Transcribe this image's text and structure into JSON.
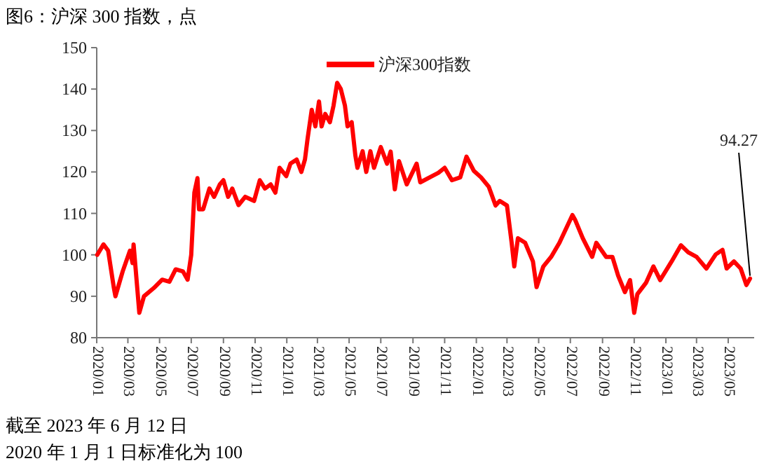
{
  "chart_data": {
    "type": "line",
    "title": "图6：沪深 300 指数，点",
    "x": [
      "2020-01-02",
      "2020-01-14",
      "2020-01-23",
      "2020-02-03",
      "2020-02-06",
      "2020-02-20",
      "2020-03-05",
      "2020-03-10",
      "2020-03-12",
      "2020-03-19",
      "2020-03-23",
      "2020-04-01",
      "2020-04-20",
      "2020-05-06",
      "2020-05-20",
      "2020-06-01",
      "2020-06-15",
      "2020-06-24",
      "2020-07-01",
      "2020-07-07",
      "2020-07-13",
      "2020-07-16",
      "2020-07-24",
      "2020-08-05",
      "2020-08-14",
      "2020-08-25",
      "2020-09-01",
      "2020-09-10",
      "2020-09-18",
      "2020-09-30",
      "2020-10-13",
      "2020-10-30",
      "2020-11-10",
      "2020-11-20",
      "2020-12-01",
      "2020-12-10",
      "2020-12-18",
      "2020-12-31",
      "2021-01-08",
      "2021-01-20",
      "2021-01-29",
      "2021-02-05",
      "2021-02-10",
      "2021-02-18",
      "2021-02-25",
      "2021-03-04",
      "2021-03-09",
      "2021-03-16",
      "2021-03-25",
      "2021-04-01",
      "2021-04-08",
      "2021-04-15",
      "2021-04-23",
      "2021-04-28",
      "2021-05-06",
      "2021-05-13",
      "2021-05-17",
      "2021-05-27",
      "2021-06-03",
      "2021-06-11",
      "2021-06-18",
      "2021-07-01",
      "2021-07-13",
      "2021-07-20",
      "2021-07-28",
      "2021-08-05",
      "2021-08-20",
      "2021-09-08",
      "2021-09-15",
      "2021-10-20",
      "2021-11-01",
      "2021-11-15",
      "2021-12-01",
      "2021-12-13",
      "2021-12-27",
      "2022-01-10",
      "2022-01-25",
      "2022-02-07",
      "2022-02-15",
      "2022-03-01",
      "2022-03-10",
      "2022-03-15",
      "2022-03-22",
      "2022-04-05",
      "2022-04-20",
      "2022-04-27",
      "2022-05-10",
      "2022-05-25",
      "2022-06-10",
      "2022-07-05",
      "2022-07-10",
      "2022-07-25",
      "2022-08-12",
      "2022-08-20",
      "2022-09-08",
      "2022-09-20",
      "2022-10-01",
      "2022-10-14",
      "2022-10-24",
      "2022-11-01",
      "2022-11-07",
      "2022-11-24",
      "2022-12-08",
      "2022-12-21",
      "2023-01-12",
      "2023-01-30",
      "2023-02-13",
      "2023-03-01",
      "2023-03-20",
      "2023-04-07",
      "2023-04-20",
      "2023-04-28",
      "2023-05-12",
      "2023-05-25",
      "2023-06-05",
      "2023-06-12"
    ],
    "series": [
      {
        "name": "沪深300指数",
        "color": "#ff0000",
        "values": [
          100,
          102.5,
          101,
          92,
          90,
          96,
          101,
          98,
          102.5,
          92,
          86,
          90,
          92,
          94,
          93.5,
          96.5,
          96,
          94,
          100,
          115,
          118.5,
          111,
          111,
          116,
          114,
          117,
          118,
          114,
          116,
          112,
          114,
          113,
          118,
          116,
          117,
          115,
          121,
          119,
          122,
          123,
          120,
          123,
          128,
          135,
          131,
          137,
          131,
          134,
          132,
          136,
          141.5,
          140,
          136,
          131,
          132,
          124,
          121,
          125,
          120,
          125,
          121,
          126,
          122,
          124.9,
          115.8,
          122.6,
          117,
          122,
          117.5,
          119.8,
          121,
          118,
          118.7,
          123.7,
          120.3,
          118.7,
          116.4,
          111.9,
          113,
          111.9,
          102.9,
          97.2,
          104,
          102.9,
          98.4,
          92.2,
          97.2,
          99.5,
          102.9,
          109.6,
          108.5,
          104,
          99.5,
          102.9,
          99.5,
          99.5,
          95,
          91,
          93.9,
          86,
          90.5,
          93.3,
          97.2,
          93.9,
          98.4,
          102.3,
          100.6,
          99.5,
          96.7,
          100.1,
          101.2,
          96.7,
          98.4,
          96.7,
          92.7,
          94.27
        ]
      }
    ],
    "xlim": [
      "2020-01-01",
      "2023-06-20"
    ],
    "xticks": [
      {
        "value": "2020-01",
        "label": "2020/01"
      },
      {
        "value": "2020-03",
        "label": "2020/03"
      },
      {
        "value": "2020-05",
        "label": "2020/05"
      },
      {
        "value": "2020-07",
        "label": "2020/07"
      },
      {
        "value": "2020-09",
        "label": "2020/09"
      },
      {
        "value": "2020-11",
        "label": "2020/11"
      },
      {
        "value": "2021-01",
        "label": "2021/01"
      },
      {
        "value": "2021-03",
        "label": "2021/03"
      },
      {
        "value": "2021-05",
        "label": "2021/05"
      },
      {
        "value": "2021-07",
        "label": "2021/07"
      },
      {
        "value": "2021-09",
        "label": "2021/09"
      },
      {
        "value": "2021-11",
        "label": "2021/11"
      },
      {
        "value": "2022-01",
        "label": "2022/01"
      },
      {
        "value": "2022-03",
        "label": "2022/03"
      },
      {
        "value": "2022-05",
        "label": "2022/05"
      },
      {
        "value": "2022-07",
        "label": "2022/07"
      },
      {
        "value": "2022-09",
        "label": "2022/09"
      },
      {
        "value": "2022-11",
        "label": "2022/11"
      },
      {
        "value": "2023-01",
        "label": "2023/01"
      },
      {
        "value": "2023-03",
        "label": "2023/03"
      },
      {
        "value": "2023-05",
        "label": "2023/05"
      }
    ],
    "ylim": [
      80,
      150
    ],
    "yticks": [
      80,
      90,
      100,
      110,
      120,
      130,
      140,
      150
    ],
    "grid": false,
    "legend": "top",
    "marker": "none",
    "line_style": "solid",
    "annotations": [
      {
        "text": "94.27",
        "x": "2023-06-12",
        "y": 94.27
      },
      "截至 2023 年 6 月 12 日",
      "2020 年 1 月 1 日标准化为 100"
    ]
  }
}
